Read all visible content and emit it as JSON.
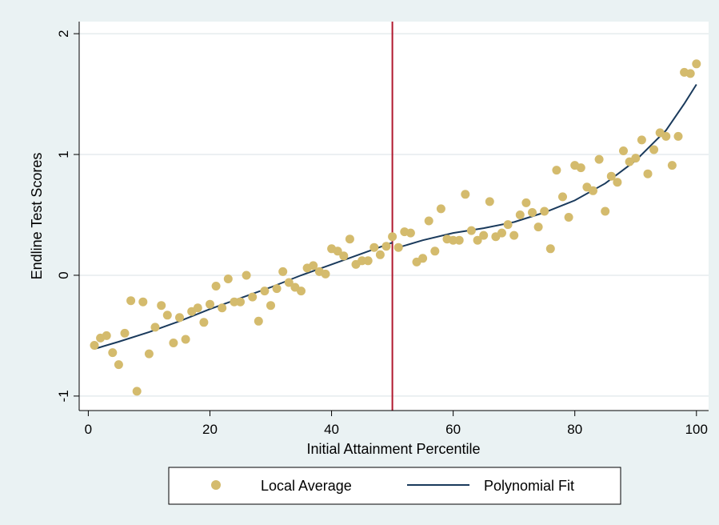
{
  "chart_data": {
    "type": "scatter",
    "xlabel": "Initial Attainment Percentile",
    "ylabel": "Endline Test Scores",
    "xlim": [
      -1.5,
      102
    ],
    "ylim": [
      -1.12,
      2.1
    ],
    "x_ticks": [
      0,
      20,
      40,
      60,
      80,
      100
    ],
    "y_ticks": [
      -1,
      0,
      1,
      2
    ],
    "x_tick_labels": [
      "0",
      "20",
      "40",
      "60",
      "80",
      "100"
    ],
    "y_tick_labels": [
      "-1",
      "0",
      "1",
      "2"
    ],
    "grid": "horizontal",
    "legend_position": "bottom",
    "cutoff_x": 50,
    "colors": {
      "background": "#eaf2f3",
      "plot_area": "#ffffff",
      "points": "#d4bb6d",
      "fit_line": "#1a3a5c",
      "cutoff_line": "#b0182e",
      "grid": "#e5ecee"
    },
    "series": [
      {
        "name": "Local Average",
        "kind": "points",
        "x": [
          1,
          2,
          3,
          4,
          5,
          6,
          7,
          8,
          9,
          10,
          11,
          12,
          13,
          14,
          15,
          16,
          17,
          18,
          19,
          20,
          21,
          22,
          23,
          24,
          25,
          26,
          27,
          28,
          29,
          30,
          31,
          32,
          33,
          34,
          35,
          36,
          37,
          38,
          39,
          40,
          41,
          42,
          43,
          44,
          45,
          46,
          47,
          48,
          49,
          50,
          51,
          52,
          53,
          54,
          55,
          56,
          57,
          58,
          59,
          60,
          61,
          62,
          63,
          64,
          65,
          66,
          67,
          68,
          69,
          70,
          71,
          72,
          73,
          74,
          75,
          76,
          77,
          78,
          79,
          80,
          81,
          82,
          83,
          84,
          85,
          86,
          87,
          88,
          89,
          90,
          91,
          92,
          93,
          94,
          95,
          96,
          97,
          98,
          99,
          100
        ],
        "y": [
          -0.58,
          -0.52,
          -0.5,
          -0.64,
          -0.74,
          -0.48,
          -0.21,
          -0.96,
          -0.22,
          -0.65,
          -0.43,
          -0.25,
          -0.33,
          -0.56,
          -0.35,
          -0.53,
          -0.3,
          -0.27,
          -0.39,
          -0.24,
          -0.09,
          -0.27,
          -0.03,
          -0.22,
          -0.22,
          0.0,
          -0.18,
          -0.38,
          -0.13,
          -0.25,
          -0.11,
          0.03,
          -0.06,
          -0.1,
          -0.13,
          0.06,
          0.08,
          0.03,
          0.01,
          0.22,
          0.2,
          0.16,
          0.3,
          0.09,
          0.12,
          0.12,
          0.23,
          0.17,
          0.24,
          0.32,
          0.23,
          0.36,
          0.35,
          0.11,
          0.14,
          0.45,
          0.2,
          0.55,
          0.3,
          0.29,
          0.29,
          0.67,
          0.37,
          0.29,
          0.33,
          0.61,
          0.32,
          0.35,
          0.42,
          0.33,
          0.5,
          0.6,
          0.52,
          0.4,
          0.53,
          0.22,
          0.87,
          0.65,
          0.48,
          0.91,
          0.89,
          0.73,
          0.7,
          0.96,
          0.53,
          0.82,
          0.77,
          1.03,
          0.94,
          0.97,
          1.12,
          0.84,
          1.04,
          1.18,
          1.15,
          0.91,
          1.15,
          1.68,
          1.67,
          1.75
        ]
      },
      {
        "name": "Polynomial Fit",
        "kind": "line",
        "segments": [
          {
            "x": [
              1,
              5,
              10,
              15,
              20,
              25,
              30,
              35,
              40,
              45,
              50
            ],
            "y": [
              -0.61,
              -0.55,
              -0.47,
              -0.38,
              -0.28,
              -0.19,
              -0.1,
              0.0,
              0.09,
              0.18,
              0.27
            ]
          },
          {
            "x": [
              51,
              55,
              60,
              65,
              70,
              75,
              80,
              85,
              90,
              95,
              98,
              100
            ],
            "y": [
              0.23,
              0.29,
              0.35,
              0.39,
              0.44,
              0.52,
              0.62,
              0.76,
              0.95,
              1.2,
              1.42,
              1.58
            ]
          }
        ]
      }
    ]
  }
}
